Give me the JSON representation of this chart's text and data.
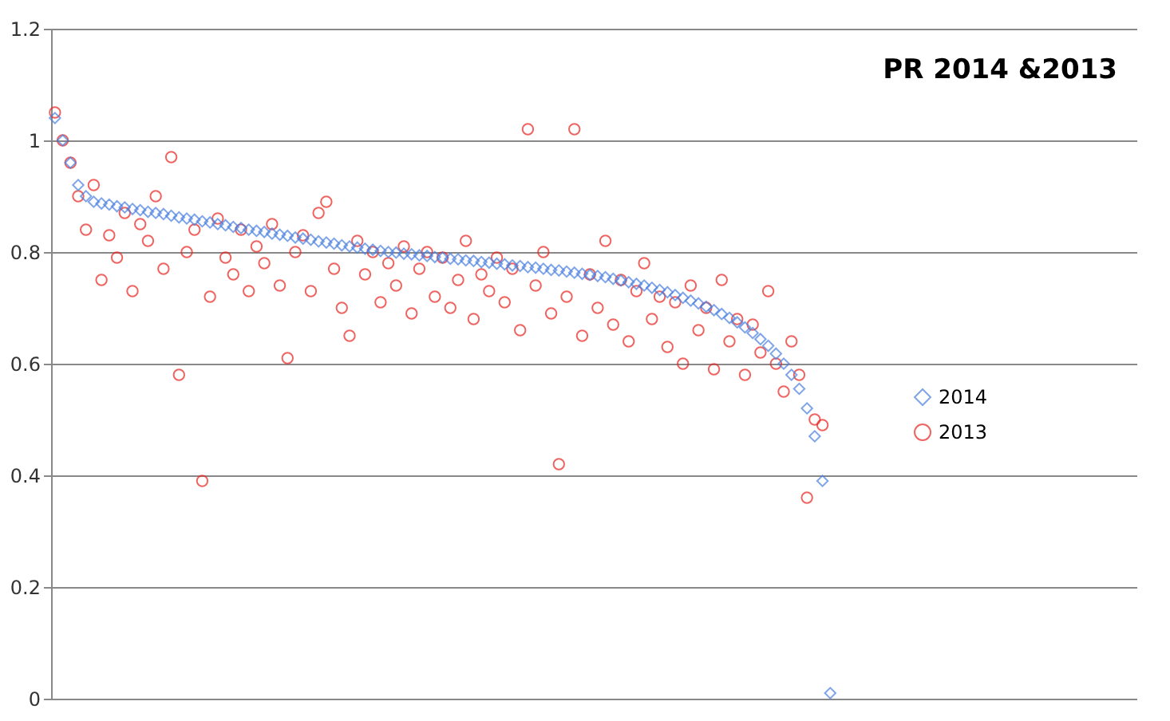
{
  "chart_data": {
    "type": "scatter",
    "title": "PR 2014 &2013",
    "categories": [
      null,
      null,
      null,
      null,
      null,
      null,
      null,
      null,
      null,
      null,
      null,
      null,
      null,
      null,
      null,
      null,
      null,
      null,
      null,
      null,
      null,
      null,
      null,
      null,
      null,
      null,
      null,
      null,
      null,
      null,
      null,
      null,
      null,
      null,
      null,
      null,
      null,
      null,
      null,
      null,
      null,
      null,
      null,
      null,
      null,
      null,
      null,
      null,
      null,
      null,
      null,
      null,
      null,
      null,
      null,
      null,
      null,
      null,
      null,
      null,
      null,
      null,
      null,
      null,
      null,
      null,
      null,
      null,
      null,
      null,
      null,
      null,
      null,
      null,
      null,
      null,
      null,
      null,
      null,
      null,
      null,
      null,
      null,
      null,
      null,
      null,
      null,
      null,
      null,
      null,
      null,
      null,
      null,
      null,
      null,
      null,
      null,
      null,
      null,
      null,
      null,
      null,
      null,
      null,
      null,
      null,
      null,
      null,
      null,
      null,
      null,
      null,
      null,
      null,
      null,
      null,
      null,
      null,
      null,
      null,
      null,
      null,
      null,
      null,
      null,
      null,
      null,
      null,
      null,
      null,
      null,
      null,
      null,
      null,
      null,
      null,
      null,
      null,
      null,
      null
    ],
    "series": [
      {
        "name": "2014",
        "color": "#4a7fe0",
        "marker": "diamond",
        "values": [
          1.04,
          1.0,
          0.96,
          0.92,
          0.9,
          0.89,
          0.887,
          0.885,
          0.882,
          0.88,
          0.877,
          0.875,
          0.872,
          0.87,
          0.868,
          0.865,
          0.862,
          0.86,
          0.858,
          0.855,
          0.853,
          0.85,
          0.848,
          0.845,
          0.843,
          0.84,
          0.838,
          0.836,
          0.833,
          0.831,
          0.829,
          0.826,
          0.824,
          0.822,
          0.819,
          0.817,
          0.815,
          0.812,
          0.81,
          0.808,
          0.806,
          0.804,
          0.802,
          0.8,
          0.799,
          0.797,
          0.796,
          0.794,
          0.793,
          0.791,
          0.79,
          0.788,
          0.787,
          0.785,
          0.784,
          0.782,
          0.781,
          0.779,
          0.778,
          0.776,
          0.775,
          0.773,
          0.772,
          0.77,
          0.768,
          0.767,
          0.765,
          0.763,
          0.761,
          0.759,
          0.757,
          0.755,
          0.752,
          0.749,
          0.746,
          0.743,
          0.74,
          0.736,
          0.732,
          0.728,
          0.723,
          0.718,
          0.713,
          0.708,
          0.702,
          0.696,
          0.689,
          0.682,
          0.674,
          0.665,
          0.655,
          0.644,
          0.632,
          0.618,
          0.6,
          0.58,
          0.555,
          0.52,
          0.47,
          0.39,
          0.01,
          null,
          null,
          null,
          null,
          null,
          null,
          null,
          null,
          null,
          null,
          null,
          null,
          null,
          null,
          null,
          null,
          null,
          null,
          null,
          null,
          null,
          null,
          null,
          null,
          null,
          null,
          null,
          null,
          null,
          null,
          null,
          null,
          null,
          null,
          null,
          null,
          null,
          null,
          null
        ]
      },
      {
        "name": "2013",
        "color": "#e8231e",
        "marker": "circle",
        "values": [
          1.05,
          1.0,
          0.96,
          0.9,
          0.84,
          0.92,
          0.75,
          0.83,
          0.79,
          0.87,
          0.73,
          0.85,
          0.82,
          0.9,
          0.77,
          0.97,
          0.58,
          0.8,
          0.84,
          0.39,
          0.72,
          0.86,
          0.79,
          0.76,
          0.84,
          0.73,
          0.81,
          0.78,
          0.85,
          0.74,
          0.61,
          0.8,
          0.83,
          0.73,
          0.87,
          0.89,
          0.77,
          0.7,
          0.65,
          0.82,
          0.76,
          0.8,
          0.71,
          0.78,
          0.74,
          0.81,
          0.69,
          0.77,
          0.8,
          0.72,
          0.79,
          0.7,
          0.75,
          0.82,
          0.68,
          0.76,
          0.73,
          0.79,
          0.71,
          0.77,
          0.66,
          1.02,
          0.74,
          0.8,
          0.69,
          0.42,
          0.72,
          1.02,
          0.65,
          0.76,
          0.7,
          0.82,
          0.67,
          0.75,
          0.64,
          0.73,
          0.78,
          0.68,
          0.72,
          0.63,
          0.71,
          0.6,
          0.74,
          0.66,
          0.7,
          0.59,
          0.75,
          0.64,
          0.68,
          0.58,
          0.67,
          0.62,
          0.73,
          0.6,
          0.55,
          0.64,
          0.58,
          0.36,
          0.5,
          0.49,
          null,
          null,
          null,
          null,
          null,
          null,
          null,
          null,
          null,
          null,
          null,
          null,
          null,
          null,
          null,
          null,
          null,
          null,
          null,
          null,
          null,
          null,
          null,
          null,
          null,
          null,
          null,
          null,
          null,
          null,
          null,
          null,
          null,
          null,
          null,
          null,
          null,
          null,
          null,
          null
        ]
      }
    ],
    "ylim": [
      0,
      1.2
    ],
    "yticks": [
      0,
      0.2,
      0.4,
      0.6,
      0.8,
      1,
      1.2
    ],
    "grid": "y",
    "legend": "right",
    "tick_labels": "y"
  }
}
